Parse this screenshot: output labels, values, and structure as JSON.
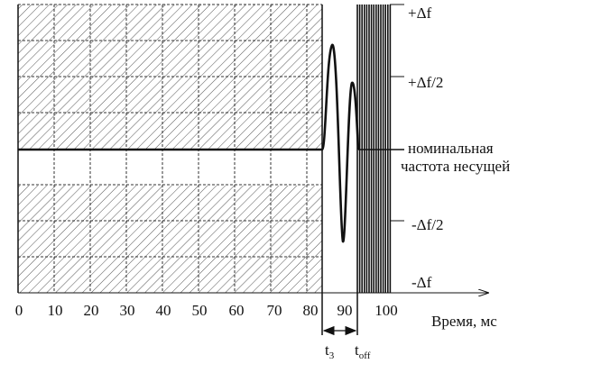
{
  "diagram": {
    "x_axis": {
      "ticks": [
        "0",
        "10",
        "20",
        "30",
        "40",
        "50",
        "60",
        "70",
        "80",
        "90",
        "100"
      ],
      "label": "Время, мс"
    },
    "y_levels": [
      {
        "id": "plus-df",
        "label": "+Δf"
      },
      {
        "id": "plus-half-df",
        "label": "+Δf/2"
      },
      {
        "id": "nominal-1",
        "label": "номинальная"
      },
      {
        "id": "nominal-2",
        "label": "частота несущей"
      },
      {
        "id": "minus-half-df",
        "label": "-Δf/2"
      },
      {
        "id": "minus-df",
        "label": "-Δf"
      }
    ],
    "interval": {
      "start_label": "t",
      "start_sub": "3",
      "end_label": "t",
      "end_sub": "off"
    }
  },
  "colors": {
    "ink": "#111111",
    "background": "#ffffff"
  }
}
